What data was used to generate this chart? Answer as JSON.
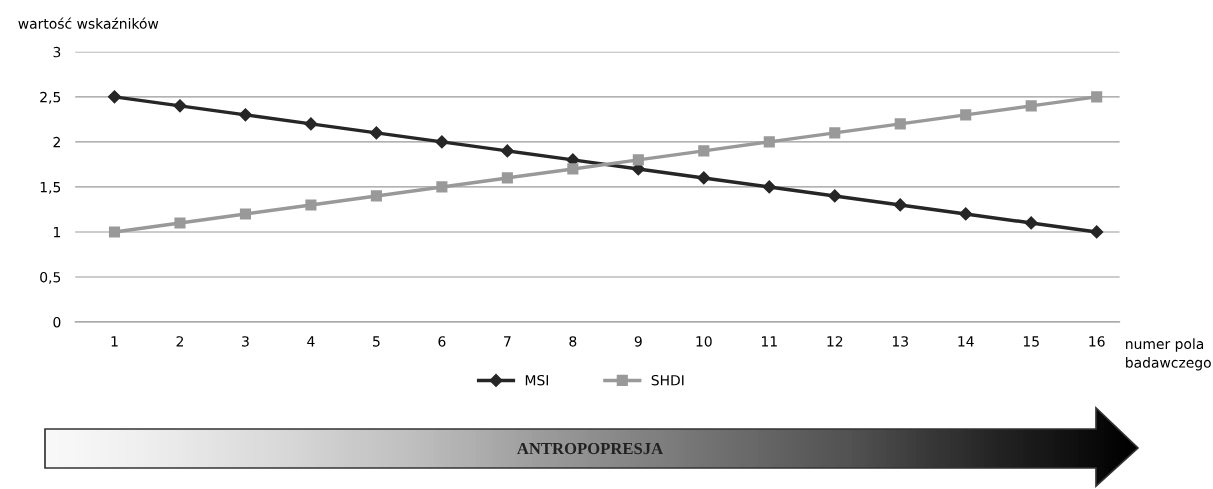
{
  "chart_data": {
    "type": "line",
    "ylabel": "wartość wskaźników",
    "xlabel": "numer pola\nbadawczego",
    "categories": [
      "1",
      "2",
      "3",
      "4",
      "5",
      "6",
      "7",
      "8",
      "9",
      "10",
      "11",
      "12",
      "13",
      "14",
      "15",
      "16"
    ],
    "series": [
      {
        "name": "MSI",
        "color": "#262626",
        "marker": "diamond",
        "values": [
          2.5,
          2.4,
          2.3,
          2.2,
          2.1,
          2.0,
          1.9,
          1.8,
          1.7,
          1.6,
          1.5,
          1.4,
          1.3,
          1.2,
          1.1,
          1.0
        ]
      },
      {
        "name": "SHDI",
        "color": "#999999",
        "marker": "square",
        "values": [
          1.0,
          1.1,
          1.2,
          1.3,
          1.4,
          1.5,
          1.6,
          1.7,
          1.8,
          1.9,
          2.0,
          2.1,
          2.2,
          2.3,
          2.4,
          2.5
        ]
      }
    ],
    "ylim": [
      0,
      3
    ],
    "yticks": [
      0,
      {
        "value": 0.5,
        "label": "0,5"
      },
      1,
      {
        "value": 1.5,
        "label": "1,5"
      },
      2,
      {
        "value": 2.5,
        "label": "2,5"
      },
      3
    ],
    "grid": "y",
    "legend": "bottom",
    "line_style": "solid",
    "annotations": [
      "ANTROPOPRESJA"
    ]
  }
}
